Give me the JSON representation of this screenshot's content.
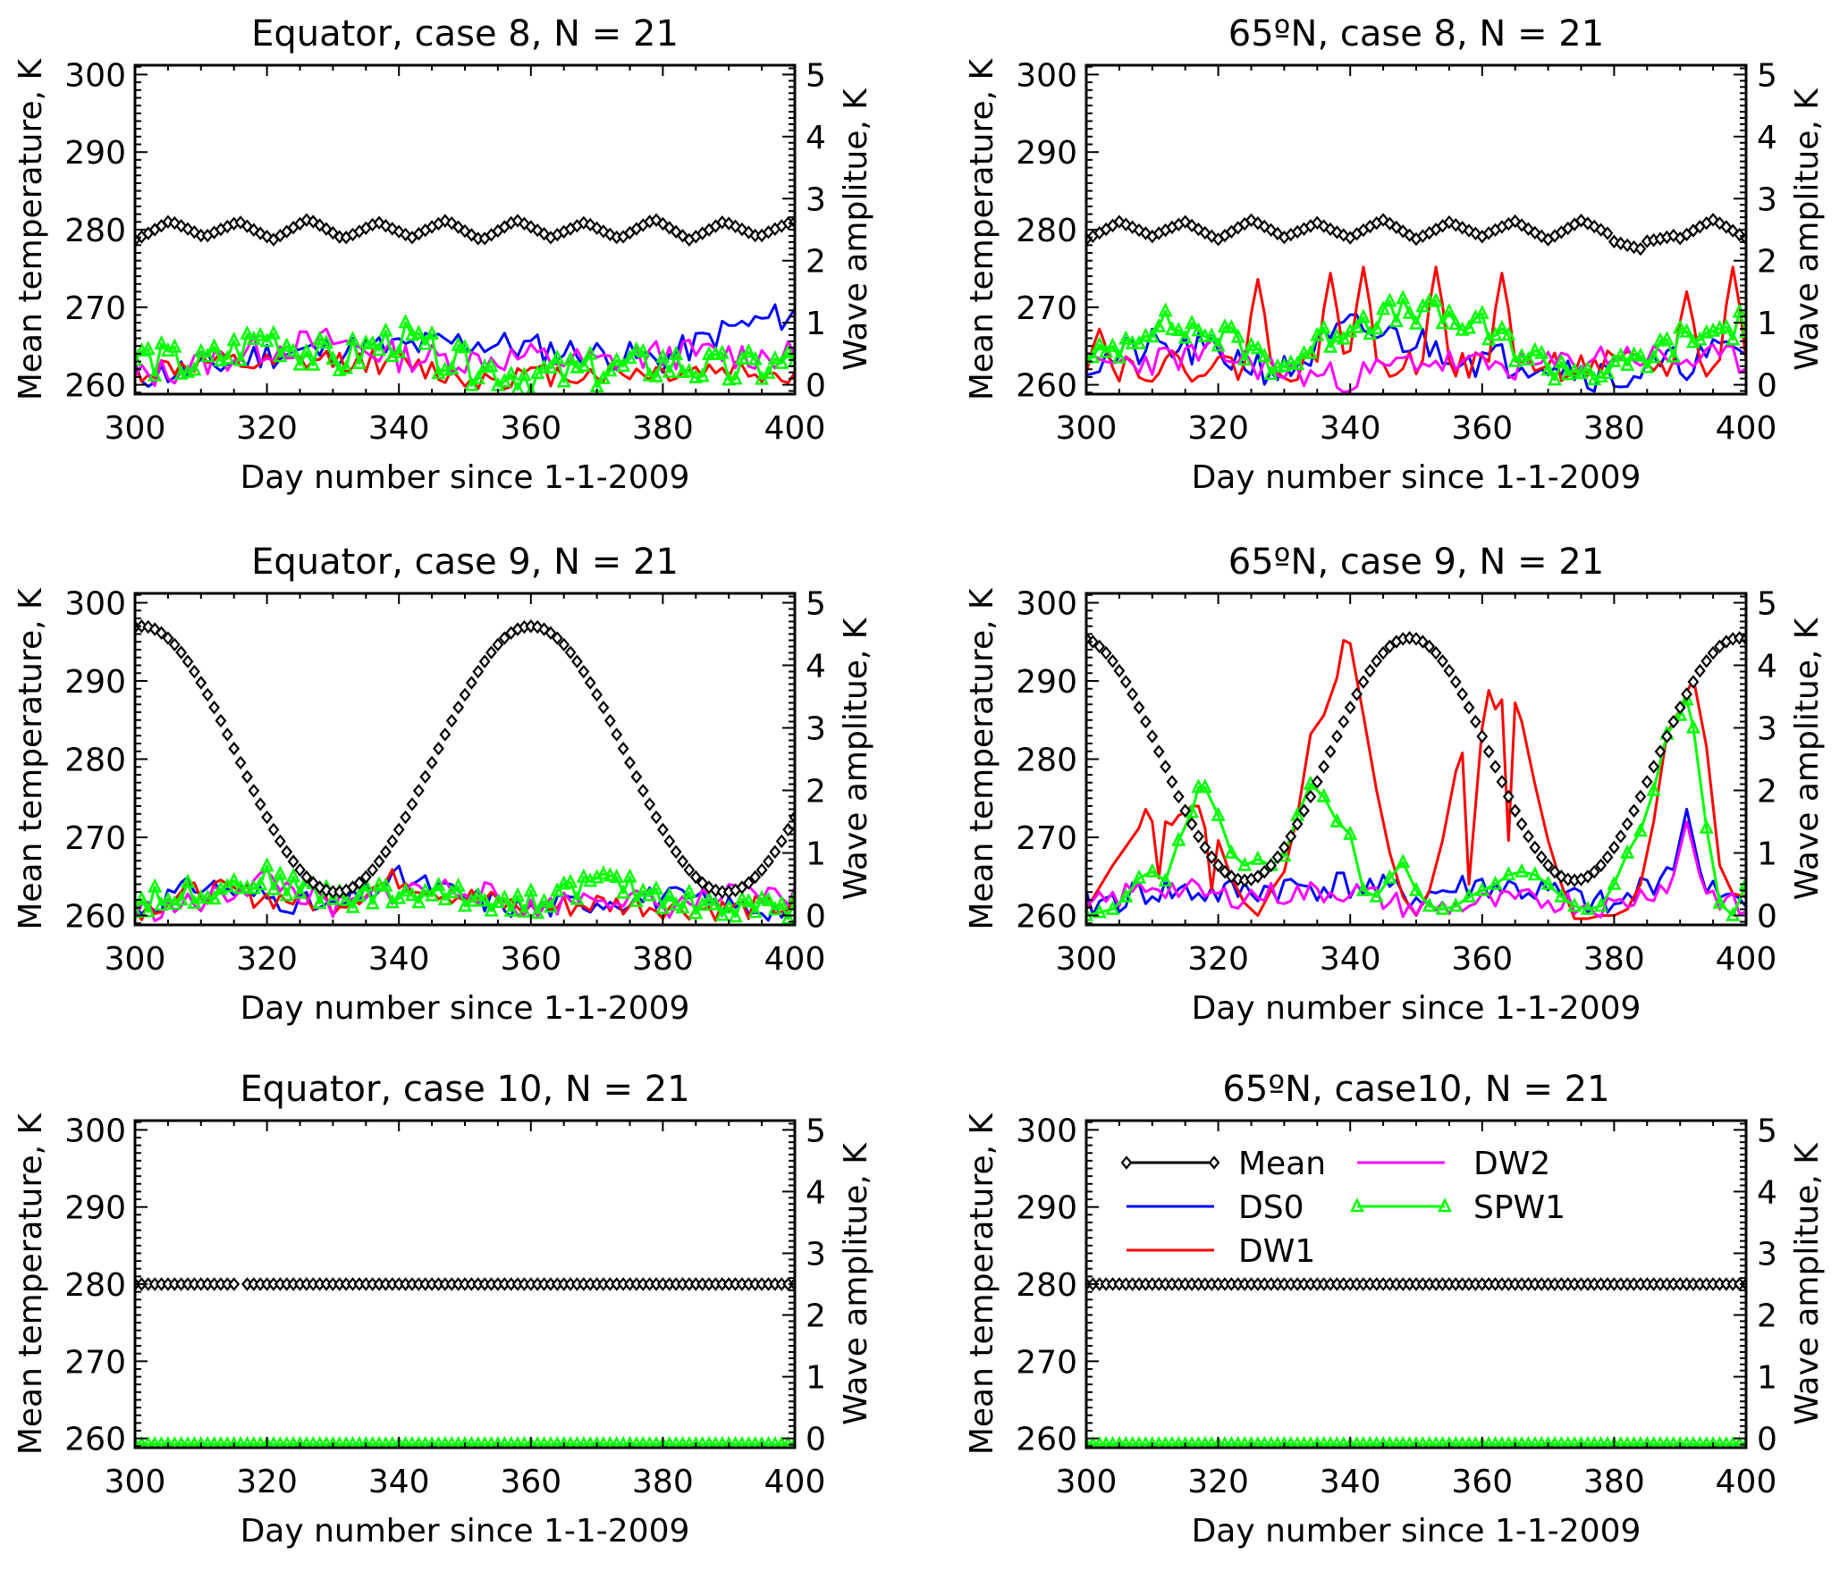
{
  "figure": {
    "xlabel": "Day number since 1-1-2009",
    "ylabel_left": "Mean temperature, K",
    "ylabel_right": "Wave amplitue, K"
  },
  "legend": {
    "placement": "panel-6 top-left",
    "entries": [
      {
        "name": "Mean",
        "color": "#000000",
        "marker": "diamond"
      },
      {
        "name": "DS0",
        "color": "#0000ff",
        "marker": "none"
      },
      {
        "name": "DW1",
        "color": "#ff0000",
        "marker": "none"
      },
      {
        "name": "DW2",
        "color": "#ff00ff",
        "marker": "none"
      },
      {
        "name": "SPW1",
        "color": "#00ff00",
        "marker": "triangle"
      }
    ]
  },
  "chart_data": [
    {
      "type": "line",
      "title": "Equator, case 8, N = 21",
      "xlabel": "Day number since 1-1-2009",
      "ylabel": "Mean temperature, K",
      "ylabel_right": "Wave amplitue, K",
      "xlim": [
        300,
        400
      ],
      "ylim": [
        258.8,
        301.2
      ],
      "ylim_right": [
        -0.15,
        5.15
      ],
      "xticks": [
        "300",
        "320",
        "340",
        "360",
        "380",
        "400"
      ],
      "yticks": [
        "260",
        "270",
        "280",
        "290",
        "300"
      ],
      "yticks_right": [
        "0",
        "1",
        "2",
        "3",
        "4",
        "5"
      ],
      "x_start": 300,
      "x_step": 1,
      "mean_shape": {
        "kind": "zigzag",
        "base": 280,
        "amp": 1.3,
        "period": 10.5
      },
      "series": [
        {
          "name": "DS0",
          "kind": "noise",
          "seed": 11,
          "level": [
            0.15,
            0.25,
            0.5,
            0.55,
            0.6,
            0.7,
            0.6,
            0.5,
            0.4,
            0.9,
            1.15
          ],
          "jitter": 0.25
        },
        {
          "name": "DW1",
          "kind": "noise",
          "seed": 12,
          "level": [
            0.2,
            0.35,
            0.3,
            0.4,
            0.35,
            0.1,
            0.15,
            0.2,
            0.2,
            0.25,
            0.15
          ],
          "jitter": 0.2
        },
        {
          "name": "DW2",
          "kind": "noise",
          "seed": 13,
          "level": [
            0.1,
            0.35,
            0.6,
            0.7,
            0.45,
            0.4,
            0.45,
            0.35,
            0.5,
            0.5,
            0.45
          ],
          "jitter": 0.25
        },
        {
          "name": "SPW1",
          "kind": "noise",
          "seed": 14,
          "level": [
            0.45,
            0.3,
            0.8,
            0.35,
            0.75,
            0.3,
            0.15,
            0.2,
            0.35,
            0.2,
            0.35
          ],
          "jitter": 0.3
        }
      ]
    },
    {
      "type": "line",
      "title": "65ºN, case 8, N = 21",
      "xlabel": "Day number since 1-1-2009",
      "ylabel": "Mean temperature, K",
      "ylabel_right": "Wave amplitue, K",
      "xlim": [
        300,
        400
      ],
      "ylim": [
        258.8,
        301.2
      ],
      "ylim_right": [
        -0.15,
        5.15
      ],
      "xticks": [
        "300",
        "320",
        "340",
        "360",
        "380",
        "400"
      ],
      "yticks": [
        "260",
        "270",
        "280",
        "290",
        "300"
      ],
      "yticks_right": [
        "0",
        "1",
        "2",
        "3",
        "4",
        "5"
      ],
      "x_start": 300,
      "x_step": 1,
      "mean_shape": {
        "kind": "zigzag",
        "base": 280,
        "amp": 1.2,
        "period": 10,
        "dip": {
          "day": 384,
          "depth": 3
        }
      },
      "series": [
        {
          "name": "DS0",
          "kind": "noise",
          "seed": 21,
          "level": [
            0.3,
            0.6,
            0.5,
            0.2,
            0.9,
            0.7,
            0.4,
            0.4,
            0.1,
            0.35,
            0.6
          ],
          "jitter": 0.3
        },
        {
          "name": "DW1",
          "kind": "peaks",
          "seed": 22,
          "base": 0.3,
          "peaks": [
            [
              302,
              0.9
            ],
            [
              326,
              1.7
            ],
            [
              337,
              1.8
            ],
            [
              342,
              1.9
            ],
            [
              353,
              1.9
            ],
            [
              363,
              1.8
            ],
            [
              391,
              1.5
            ],
            [
              398,
              1.9
            ]
          ],
          "width": 1.6
        },
        {
          "name": "DW2",
          "kind": "noise",
          "seed": 23,
          "level": [
            0.3,
            0.4,
            0.5,
            0.2,
            0.1,
            0.4,
            0.3,
            0.3,
            0.5,
            0.4,
            0.4
          ],
          "jitter": 0.25
        },
        {
          "name": "SPW1",
          "kind": "noise",
          "seed": 24,
          "level": [
            0.3,
            1.0,
            0.8,
            0.3,
            1.0,
            1.2,
            0.9,
            0.3,
            0.2,
            0.7,
            1.0
          ],
          "jitter": 0.25
        }
      ]
    },
    {
      "type": "line",
      "title": "Equator, case 9, N = 21",
      "xlabel": "Day number since 1-1-2009",
      "ylabel": "Mean temperature, K",
      "ylabel_right": "Wave amplitue, K",
      "xlim": [
        300,
        400
      ],
      "ylim": [
        258.8,
        301.2
      ],
      "ylim_right": [
        -0.15,
        5.15
      ],
      "xticks": [
        "300",
        "320",
        "340",
        "360",
        "380",
        "400"
      ],
      "yticks": [
        "260",
        "270",
        "280",
        "290",
        "300"
      ],
      "yticks_right": [
        "0",
        "1",
        "2",
        "3",
        "4",
        "5"
      ],
      "x_start": 300,
      "x_step": 1,
      "mean_shape": {
        "kind": "cosine",
        "center": 280,
        "amp": 17,
        "period": 59,
        "peak_day": 360
      },
      "series": [
        {
          "name": "DS0",
          "kind": "noise",
          "seed": 31,
          "level": [
            0.1,
            0.5,
            0.3,
            0.1,
            0.6,
            0.3,
            0.1,
            0.25,
            0.3,
            0.15,
            0.1
          ],
          "jitter": 0.2
        },
        {
          "name": "DW1",
          "kind": "noise",
          "seed": 32,
          "level": [
            0.1,
            0.4,
            0.3,
            0.2,
            0.6,
            0.3,
            0.1,
            0.2,
            0.15,
            0.1,
            0.15
          ],
          "jitter": 0.2
        },
        {
          "name": "DW2",
          "kind": "noise",
          "seed": 33,
          "level": [
            0.05,
            0.2,
            0.6,
            0.1,
            0.4,
            0.45,
            0.1,
            0.35,
            0.15,
            0.3,
            0.3
          ],
          "jitter": 0.2
        },
        {
          "name": "SPW1",
          "kind": "noise",
          "seed": 34,
          "level": [
            0.2,
            0.4,
            0.6,
            0.3,
            0.35,
            0.3,
            0.2,
            0.55,
            0.3,
            0.1,
            0.15
          ],
          "jitter": 0.2
        }
      ]
    },
    {
      "type": "line",
      "title": "65ºN, case 9, N = 21",
      "xlabel": "Day number since 1-1-2009",
      "ylabel": "Mean temperature, K",
      "ylabel_right": "Wave amplitue, K",
      "xlim": [
        300,
        400
      ],
      "ylim": [
        258.8,
        301.2
      ],
      "ylim_right": [
        -0.15,
        5.15
      ],
      "xticks": [
        "300",
        "320",
        "340",
        "360",
        "380",
        "400"
      ],
      "yticks": [
        "260",
        "270",
        "280",
        "290",
        "300"
      ],
      "yticks_right": [
        "0",
        "1",
        "2",
        "3",
        "4",
        "5"
      ],
      "x_start": 300,
      "x_step": 1,
      "mean_shape": {
        "kind": "cosine",
        "center": 280,
        "amp": 15.5,
        "period": 50,
        "peak_day": 349
      },
      "series": [
        {
          "name": "DS0",
          "kind": "noise",
          "seed": 41,
          "level": [
            0.15,
            0.4,
            0.35,
            0.45,
            0.5,
            0.3,
            0.5,
            0.35,
            0.1,
            0.9,
            0.1
          ],
          "jitter": 0.25,
          "spikes": [
            [
              391,
              1.7
            ]
          ]
        },
        {
          "name": "DW1",
          "kind": "points",
          "x": [
            300,
            304,
            306,
            308,
            309,
            310,
            311,
            312,
            313,
            314,
            315,
            316,
            317,
            318,
            319,
            320,
            322,
            324,
            326,
            328,
            330,
            332,
            334,
            336,
            338,
            339,
            340,
            342,
            344,
            346,
            348,
            350,
            352,
            354,
            356,
            357,
            358,
            360,
            361,
            362,
            363,
            364,
            365,
            366,
            368,
            370,
            372,
            374,
            376,
            378,
            380,
            382,
            384,
            386,
            388,
            390,
            392,
            394,
            396,
            398,
            400
          ],
          "y": [
            0.1,
            0.8,
            1.1,
            1.4,
            1.7,
            1.5,
            0.6,
            1.5,
            1.45,
            1.6,
            1.65,
            1.75,
            1.75,
            1.4,
            0.4,
            1.2,
            0.6,
            0.2,
            0.0,
            0.4,
            0.7,
            1.6,
            2.9,
            3.2,
            3.8,
            4.4,
            4.35,
            3.2,
            2.0,
            1.0,
            0.3,
            0.0,
            0.4,
            1.2,
            2.3,
            2.6,
            0.5,
            3.0,
            3.6,
            3.3,
            3.45,
            1.2,
            3.4,
            3.1,
            2.1,
            1.2,
            0.5,
            -0.05,
            -0.05,
            0.0,
            0.0,
            0.1,
            0.5,
            1.5,
            2.9,
            3.3,
            3.8,
            2.7,
            0.8,
            0.35,
            0.3
          ]
        },
        {
          "name": "DW2",
          "kind": "noise",
          "seed": 43,
          "level": [
            0.1,
            0.5,
            0.3,
            0.35,
            0.4,
            0.1,
            0.2,
            0.25,
            0.15,
            0.6,
            0.05
          ],
          "jitter": 0.2,
          "spikes": [
            [
              391,
              1.5
            ]
          ]
        },
        {
          "name": "SPW1",
          "kind": "points",
          "x": [
            300,
            302,
            304,
            306,
            308,
            310,
            312,
            314,
            316,
            317,
            318,
            320,
            322,
            324,
            326,
            328,
            330,
            332,
            334,
            336,
            338,
            340,
            342,
            344,
            346,
            348,
            350,
            352,
            354,
            356,
            358,
            360,
            362,
            364,
            366,
            368,
            370,
            372,
            374,
            376,
            378,
            380,
            382,
            384,
            386,
            388,
            390,
            391,
            392,
            394,
            396,
            398,
            400
          ],
          "y": [
            0.0,
            0.05,
            0.1,
            0.3,
            0.6,
            0.7,
            0.55,
            1.2,
            1.65,
            2.05,
            2.05,
            1.6,
            1.0,
            0.8,
            0.9,
            0.8,
            0.95,
            1.6,
            2.1,
            1.9,
            1.5,
            1.3,
            0.4,
            0.3,
            0.6,
            0.85,
            0.4,
            0.15,
            0.1,
            0.15,
            0.3,
            0.4,
            0.5,
            0.65,
            0.7,
            0.65,
            0.5,
            0.3,
            0.15,
            0.1,
            0.15,
            0.5,
            1.0,
            1.35,
            2.0,
            2.9,
            3.2,
            3.45,
            3.0,
            1.4,
            0.2,
            0.0,
            0.5
          ]
        }
      ]
    },
    {
      "type": "line",
      "title": "Equator, case 10, N = 21",
      "xlabel": "Day number since 1-1-2009",
      "ylabel": "Mean temperature, K",
      "ylabel_right": "Wave amplitue, K",
      "xlim": [
        300,
        400
      ],
      "ylim": [
        258.8,
        301.2
      ],
      "ylim_right": [
        -0.15,
        5.15
      ],
      "xticks": [
        "300",
        "320",
        "340",
        "360",
        "380",
        "400"
      ],
      "yticks": [
        "260",
        "270",
        "280",
        "290",
        "300"
      ],
      "yticks_right": [
        "0",
        "1",
        "2",
        "3",
        "4",
        "5"
      ],
      "x_start": 300,
      "x_step": 1,
      "mean_shape": {
        "kind": "constant",
        "value": 280,
        "gap_day": 316
      },
      "series": [
        {
          "name": "DS0",
          "kind": "constant",
          "value": -0.1
        },
        {
          "name": "DW1",
          "kind": "constant",
          "value": -0.1
        },
        {
          "name": "DW2",
          "kind": "constant",
          "value": -0.1
        },
        {
          "name": "SPW1",
          "kind": "constant",
          "value": -0.1
        }
      ]
    },
    {
      "type": "line",
      "title": "65ºN, case10, N = 21",
      "xlabel": "Day number since 1-1-2009",
      "ylabel": "Mean temperature, K",
      "ylabel_right": "Wave amplitue, K",
      "xlim": [
        300,
        400
      ],
      "ylim": [
        258.8,
        301.2
      ],
      "ylim_right": [
        -0.15,
        5.15
      ],
      "xticks": [
        "300",
        "320",
        "340",
        "360",
        "380",
        "400"
      ],
      "yticks": [
        "260",
        "270",
        "280",
        "290",
        "300"
      ],
      "yticks_right": [
        "0",
        "1",
        "2",
        "3",
        "4",
        "5"
      ],
      "x_start": 300,
      "x_step": 1,
      "mean_shape": {
        "kind": "constant",
        "value": 280
      },
      "series": [
        {
          "name": "DS0",
          "kind": "constant",
          "value": -0.1
        },
        {
          "name": "DW1",
          "kind": "constant",
          "value": -0.1
        },
        {
          "name": "DW2",
          "kind": "constant",
          "value": -0.1
        },
        {
          "name": "SPW1",
          "kind": "constant",
          "value": -0.1
        }
      ],
      "has_legend": true
    }
  ]
}
